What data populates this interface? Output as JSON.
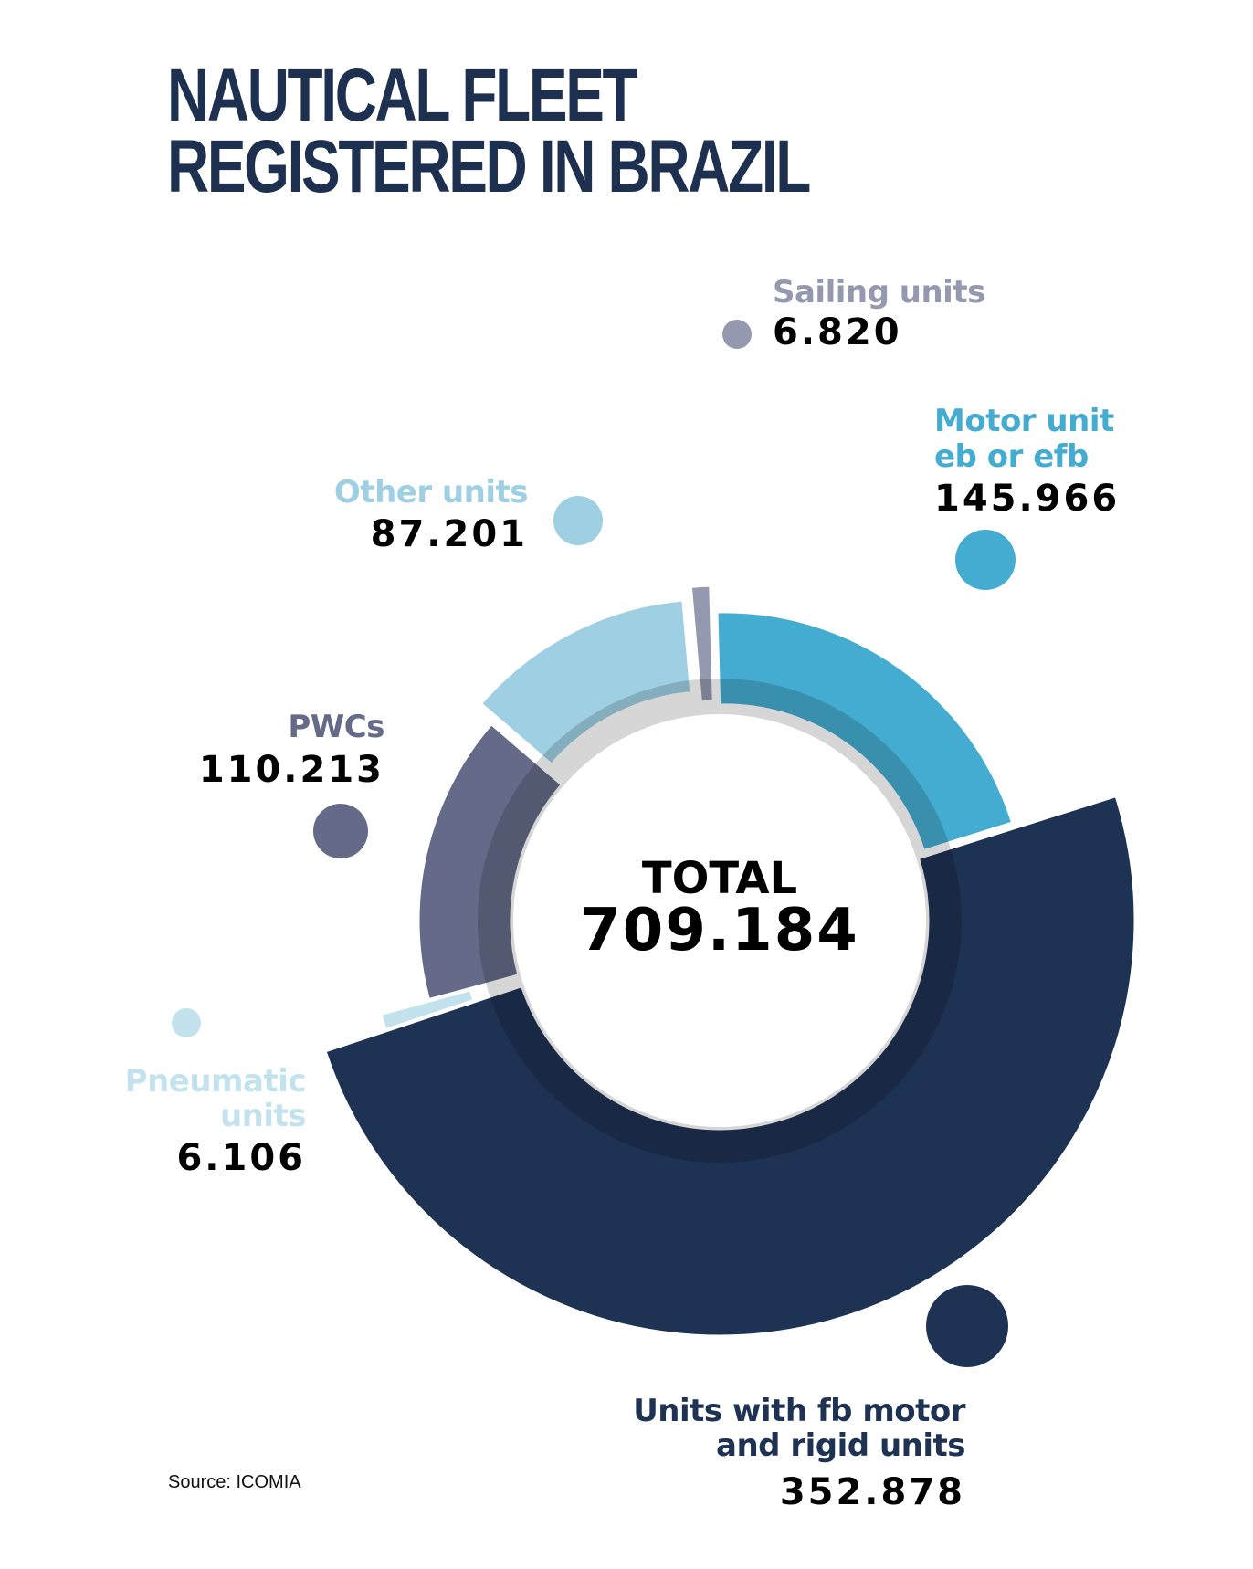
{
  "title_lines": [
    "NAUTICAL FLEET",
    "REGISTERED IN BRAZIL"
  ],
  "source": "Source: ICOMIA",
  "chart_data": {
    "type": "pie",
    "variant": "exploded donut",
    "center_label": "TOTAL",
    "total": "709.184",
    "slices": [
      {
        "name_lines": [
          "Sailing units"
        ],
        "value": 6820,
        "value_label": "6.820",
        "color": "#9599b0"
      },
      {
        "name_lines": [
          "Motor unit",
          "eb or efb"
        ],
        "value": 145966,
        "value_label": "145.966",
        "color": "#44acd0"
      },
      {
        "name_lines": [
          "Units with fb motor",
          "and rigid units"
        ],
        "value": 352878,
        "value_label": "352.878",
        "color": "#1e3253"
      },
      {
        "name_lines": [
          "Pneumatic",
          "units"
        ],
        "value": 6106,
        "value_label": "6.106",
        "color": "#c2e3ee"
      },
      {
        "name_lines": [
          "PWCs"
        ],
        "value": 110213,
        "value_label": "110.213",
        "color": "#646a87"
      },
      {
        "name_lines": [
          "Other units"
        ],
        "value": 87201,
        "value_label": "87.201",
        "color": "#9ecfe3"
      }
    ]
  }
}
